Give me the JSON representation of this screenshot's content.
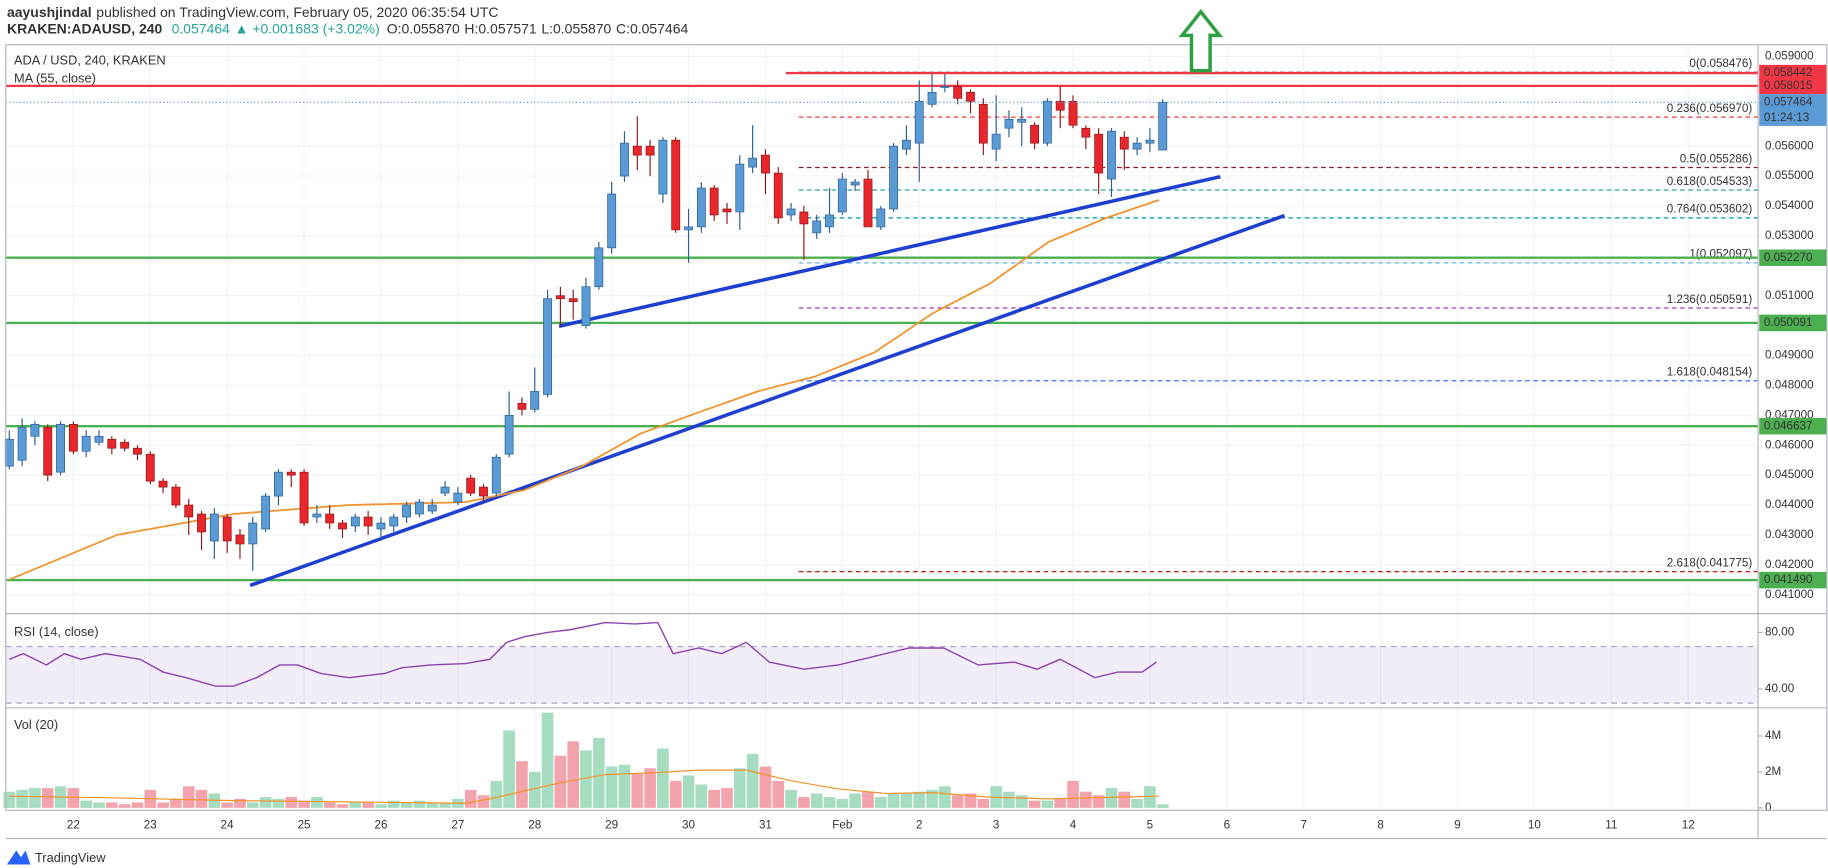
{
  "header": {
    "author": "aayushjindal",
    "published": "published on TradingView.com, February 05, 2020 06:35:54 UTC",
    "symbol": "KRAKEN:ADAUSD, 240",
    "price": "0.057464",
    "change": "▲ +0.001683 (+3.02%)",
    "ohlc": [
      "O:0.055870",
      "H:0.057571",
      "L:0.055870",
      "C:0.057464"
    ]
  },
  "footer": "TradingView",
  "chart_data": [
    {
      "type": "candlestick",
      "title": "ADA / USD, 240, KRAKEN",
      "up_color": "#5b9bd5",
      "down_color": "#e8262b",
      "open": [
        0.0453,
        0.0455,
        0.0463,
        0.0466,
        0.0451,
        0.0467,
        0.0458,
        0.0461,
        0.0462,
        0.0461,
        0.0459,
        0.0457,
        0.0448,
        0.0446,
        0.044,
        0.0437,
        0.0428,
        0.0436,
        0.043,
        0.0427,
        0.0432,
        0.0443,
        0.0451,
        0.0451,
        0.0436,
        0.0437,
        0.0434,
        0.0433,
        0.0436,
        0.0432,
        0.0433,
        0.0436,
        0.0437,
        0.0438,
        0.0444,
        0.0441,
        0.0449,
        0.0446,
        0.0444,
        0.0457,
        0.0474,
        0.0472,
        0.0477,
        0.051,
        0.0509,
        0.05,
        0.0513,
        0.0526,
        0.055,
        0.056,
        0.056,
        0.0544,
        0.0562,
        0.0532,
        0.0533,
        0.0546,
        0.0539,
        0.0538,
        0.0553,
        0.0557,
        0.0551,
        0.0537,
        0.0538,
        0.0531,
        0.0533,
        0.0538,
        0.0547,
        0.0549,
        0.0533,
        0.0539,
        0.0559,
        0.0561,
        0.0574,
        0.058,
        0.058,
        0.0578,
        0.0574,
        0.0559,
        0.0566,
        0.0568,
        0.0567,
        0.0561,
        0.0575,
        0.0575,
        0.0566,
        0.0564,
        0.0549,
        0.0563,
        0.0559,
        0.0561,
        0.05587
      ],
      "high": [
        0.0465,
        0.0469,
        0.0468,
        0.0467,
        0.0468,
        0.0468,
        0.0465,
        0.0465,
        0.0463,
        0.0462,
        0.046,
        0.0458,
        0.0449,
        0.0447,
        0.0442,
        0.0438,
        0.0439,
        0.0437,
        0.0432,
        0.0436,
        0.0444,
        0.0452,
        0.0452,
        0.0452,
        0.044,
        0.044,
        0.0435,
        0.0437,
        0.0438,
        0.0436,
        0.0437,
        0.0441,
        0.0442,
        0.0442,
        0.0448,
        0.0446,
        0.045,
        0.0447,
        0.0457,
        0.0478,
        0.0476,
        0.0486,
        0.0512,
        0.0513,
        0.0512,
        0.0516,
        0.0528,
        0.0548,
        0.0565,
        0.057,
        0.0562,
        0.0563,
        0.0563,
        0.0539,
        0.0548,
        0.0547,
        0.0541,
        0.0557,
        0.0567,
        0.0559,
        0.0553,
        0.0541,
        0.054,
        0.0537,
        0.0546,
        0.0551,
        0.0549,
        0.0552,
        0.054,
        0.0561,
        0.0567,
        0.0582,
        0.0584,
        0.0584,
        0.0582,
        0.0579,
        0.0576,
        0.0577,
        0.0572,
        0.0573,
        0.0568,
        0.0576,
        0.058,
        0.0577,
        0.0567,
        0.0566,
        0.0566,
        0.0565,
        0.0563,
        0.0566,
        0.057571
      ],
      "low": [
        0.0452,
        0.0453,
        0.046,
        0.0448,
        0.045,
        0.0457,
        0.0456,
        0.046,
        0.0457,
        0.0458,
        0.0455,
        0.0447,
        0.0444,
        0.0439,
        0.043,
        0.0425,
        0.0422,
        0.0424,
        0.0422,
        0.0418,
        0.0431,
        0.044,
        0.0446,
        0.0433,
        0.0434,
        0.0432,
        0.0429,
        0.0431,
        0.043,
        0.0428,
        0.0431,
        0.0434,
        0.0436,
        0.0437,
        0.0443,
        0.044,
        0.0443,
        0.0441,
        0.0443,
        0.0456,
        0.047,
        0.0471,
        0.0476,
        0.05,
        0.0502,
        0.0499,
        0.0512,
        0.0524,
        0.0548,
        0.0552,
        0.055,
        0.0541,
        0.0531,
        0.0521,
        0.0531,
        0.0535,
        0.0534,
        0.0532,
        0.0551,
        0.0544,
        0.0534,
        0.0535,
        0.0522,
        0.0529,
        0.0531,
        0.0537,
        0.0545,
        0.0533,
        0.0532,
        0.0538,
        0.0557,
        0.0548,
        0.0573,
        0.0578,
        0.0574,
        0.0571,
        0.0557,
        0.0555,
        0.0563,
        0.056,
        0.0559,
        0.056,
        0.0566,
        0.0566,
        0.0559,
        0.0544,
        0.0543,
        0.0552,
        0.0557,
        0.0558,
        0.05587
      ],
      "close": [
        0.0462,
        0.0466,
        0.0467,
        0.045,
        0.0467,
        0.0458,
        0.0463,
        0.0463,
        0.0459,
        0.0459,
        0.0457,
        0.0448,
        0.0446,
        0.044,
        0.0436,
        0.0431,
        0.0437,
        0.0428,
        0.0427,
        0.0434,
        0.0443,
        0.0451,
        0.045,
        0.0434,
        0.0437,
        0.0434,
        0.0432,
        0.0436,
        0.0433,
        0.0434,
        0.0436,
        0.044,
        0.0441,
        0.044,
        0.0446,
        0.0444,
        0.0444,
        0.0443,
        0.0456,
        0.047,
        0.0472,
        0.0478,
        0.0509,
        0.0509,
        0.0508,
        0.0513,
        0.0526,
        0.0544,
        0.0561,
        0.0557,
        0.0557,
        0.0562,
        0.0532,
        0.0533,
        0.0546,
        0.0537,
        0.0538,
        0.0554,
        0.0556,
        0.0551,
        0.0536,
        0.0539,
        0.0534,
        0.0535,
        0.0537,
        0.0549,
        0.0548,
        0.0533,
        0.0539,
        0.056,
        0.0562,
        0.0575,
        0.0578,
        0.058,
        0.0576,
        0.0575,
        0.0561,
        0.0564,
        0.0569,
        0.0569,
        0.0561,
        0.0575,
        0.0572,
        0.0567,
        0.0563,
        0.0551,
        0.0565,
        0.0559,
        0.0561,
        0.0562,
        0.057464
      ],
      "ma": {
        "name": "MA (55, close)",
        "color": "#f0932b",
        "x": [
          0,
          8.4,
          17.5,
          26.5,
          35.6,
          40.2,
          44.7,
          49.3,
          53.8,
          58.4,
          62.9,
          67.5,
          72,
          76.5,
          81.1,
          85.6,
          89.7
        ],
        "values": [
          0.04151,
          0.043,
          0.0437,
          0.044,
          0.0441,
          0.0445,
          0.0453,
          0.0464,
          0.0471,
          0.0478,
          0.0483,
          0.0491,
          0.0504,
          0.0514,
          0.0528,
          0.0536,
          0.0542
        ]
      },
      "trendlines": [
        {
          "color": "#1f3fd1",
          "x": [
            42.9,
            94.5
          ],
          "values": [
            0.04998,
            0.05498
          ]
        },
        {
          "color": "#1f3fd1",
          "x": [
            18.8,
            99.5
          ],
          "values": [
            0.04131,
            0.05368
          ]
        }
      ],
      "hlines": [
        {
          "value": 0.058442,
          "label": "0.058442",
          "color": "#f23645",
          "xstart": 60.6
        },
        {
          "value": 0.058015,
          "label": "0.058015",
          "color": "#f23645"
        },
        {
          "value": 0.05227,
          "label": "0.052270",
          "color": "#4caf50"
        },
        {
          "value": 0.050091,
          "label": "0.050091",
          "color": "#4caf50"
        },
        {
          "value": 0.046637,
          "label": "0.046637",
          "color": "#4caf50"
        },
        {
          "value": 0.04149,
          "label": "0.041490",
          "color": "#4caf50"
        }
      ],
      "fib_xstart": 61.6,
      "fibs": [
        {
          "value": 0.058476,
          "label": "0(0.058476)",
          "color": "#787b86"
        },
        {
          "value": 0.05697,
          "label": "0.236(0.056970)",
          "color": "#f44336"
        },
        {
          "value": 0.055286,
          "label": "0.5(0.055286)",
          "color": "#8b1a1a"
        },
        {
          "value": 0.054533,
          "label": "0.618(0.054533)",
          "color": "#26a69a"
        },
        {
          "value": 0.053602,
          "label": "0.764(0.053602)",
          "color": "#0097a7"
        },
        {
          "value": 0.052097,
          "label": "1(0.052097)",
          "color": "#64b5f6"
        },
        {
          "value": 0.050591,
          "label": "1.236(0.050591)",
          "color": "#9c27b0"
        },
        {
          "value": 0.048154,
          "label": "1.618(0.048154)",
          "color": "#2962ff"
        },
        {
          "value": 0.041775,
          "label": "2.618(0.041775)",
          "color": "#b71c1c"
        }
      ],
      "last_price": {
        "value": 0.057464,
        "label": "0.057464",
        "color": "#5b9bd5",
        "countdown": "01:24:13"
      },
      "xlim": [
        -0.27,
        136.45
      ],
      "xticks": [
        {
          "value": 5,
          "label": "22"
        },
        {
          "value": 11,
          "label": "23"
        },
        {
          "value": 17,
          "label": "24"
        },
        {
          "value": 23,
          "label": "25"
        },
        {
          "value": 29,
          "label": "26"
        },
        {
          "value": 35,
          "label": "27"
        },
        {
          "value": 41,
          "label": "28"
        },
        {
          "value": 47,
          "label": "29"
        },
        {
          "value": 53,
          "label": "30"
        },
        {
          "value": 59,
          "label": "31"
        },
        {
          "value": 65,
          "label": "Feb"
        },
        {
          "value": 71,
          "label": "2"
        },
        {
          "value": 77,
          "label": "3"
        },
        {
          "value": 83,
          "label": "4"
        },
        {
          "value": 89,
          "label": "5"
        },
        {
          "value": 95,
          "label": "6"
        },
        {
          "value": 101,
          "label": "7"
        },
        {
          "value": 107,
          "label": "8"
        },
        {
          "value": 113,
          "label": "9"
        },
        {
          "value": 119,
          "label": "10"
        },
        {
          "value": 125,
          "label": "11"
        },
        {
          "value": 131,
          "label": "12"
        }
      ],
      "ylim": [
        0.04041,
        0.05939
      ],
      "yticks": [
        {
          "value": 0.041,
          "label": "0.041000"
        },
        {
          "value": 0.042,
          "label": "0.042000"
        },
        {
          "value": 0.043,
          "label": "0.043000"
        },
        {
          "value": 0.044,
          "label": "0.044000"
        },
        {
          "value": 0.045,
          "label": "0.045000"
        },
        {
          "value": 0.046,
          "label": "0.046000"
        },
        {
          "value": 0.047,
          "label": "0.047000"
        },
        {
          "value": 0.048,
          "label": "0.048000"
        },
        {
          "value": 0.049,
          "label": "0.049000"
        },
        {
          "value": 0.051,
          "label": "0.051000"
        },
        {
          "value": 0.053,
          "label": "0.053000"
        },
        {
          "value": 0.054,
          "label": "0.054000"
        },
        {
          "value": 0.055,
          "label": "0.055000"
        },
        {
          "value": 0.056,
          "label": "0.056000"
        },
        {
          "value": 0.059,
          "label": "0.059000"
        }
      ],
      "grid": true
    },
    {
      "type": "line",
      "title": "RSI (14, close)",
      "color": "#8e44ad",
      "band": [
        30,
        70
      ],
      "x": [
        0,
        1.1,
        2.9,
        4.3,
        5.6,
        7.5,
        10.2,
        12,
        13.8,
        16.1,
        17.5,
        19.3,
        21.1,
        22.5,
        24.3,
        26.5,
        29.3,
        30.6,
        32.9,
        35.6,
        37.5,
        38.8,
        40.2,
        42,
        43.8,
        46.5,
        48.8,
        50.6,
        51.8,
        53.8,
        55.6,
        57.5,
        59.3,
        62,
        64.7,
        67,
        70.2,
        72.9,
        75.6,
        78.4,
        80.2,
        82,
        84.7,
        86.5,
        88.4,
        89.5
      ],
      "values": [
        61,
        65,
        57,
        65,
        61,
        65,
        61,
        52,
        48,
        42,
        42,
        48,
        57,
        57,
        51,
        48,
        51,
        55,
        57,
        58,
        61,
        73,
        77,
        80,
        82,
        87,
        86,
        87,
        65,
        69,
        65,
        73,
        59,
        54,
        57,
        62,
        69,
        69,
        57,
        59,
        54,
        61,
        48,
        52,
        52,
        59
      ],
      "ylim": [
        27.5,
        92.5
      ],
      "yticks": [
        {
          "value": 80,
          "label": "80.00"
        },
        {
          "value": 40,
          "label": "40.00"
        }
      ]
    },
    {
      "type": "bar",
      "title": "Vol (20)",
      "up_color": "#a6dcc0",
      "down_color": "#f2a3ab",
      "values": [
        0.9,
        1.0,
        1.1,
        1.1,
        1.2,
        1.1,
        0.4,
        0.3,
        0.3,
        0.2,
        0.3,
        1.0,
        0.3,
        0.5,
        1.2,
        1.0,
        0.8,
        0.3,
        0.5,
        0.3,
        0.6,
        0.5,
        0.6,
        0.4,
        0.6,
        0.3,
        0.2,
        0.3,
        0.3,
        0.2,
        0.4,
        0.3,
        0.4,
        0.3,
        0.3,
        0.5,
        1.0,
        0.7,
        1.5,
        4.3,
        2.6,
        2.0,
        5.3,
        2.9,
        3.7,
        3.2,
        3.9,
        2.3,
        2.4,
        1.9,
        2.2,
        3.3,
        1.5,
        1.8,
        1.3,
        1.0,
        1.1,
        2.2,
        3.0,
        2.3,
        1.5,
        1.0,
        0.6,
        0.8,
        0.6,
        0.5,
        0.8,
        0.9,
        0.6,
        0.8,
        0.8,
        0.9,
        1.0,
        1.2,
        0.7,
        0.8,
        0.5,
        1.2,
        0.9,
        0.7,
        0.4,
        0.4,
        0.5,
        1.5,
        0.9,
        0.7,
        1.1,
        0.9,
        0.5,
        1.2,
        0.2
      ],
      "ma": {
        "color": "#f0932b",
        "x": [
          0,
          8.4,
          17.5,
          26.5,
          35.6,
          37.5,
          43,
          46.5,
          50.2,
          53.8,
          57.5,
          61,
          64.7,
          68.4,
          72,
          76.5,
          81.1,
          89.7
        ],
        "values": [
          0.65,
          0.55,
          0.4,
          0.33,
          0.26,
          0.5,
          1.4,
          1.85,
          1.95,
          2.1,
          2.1,
          1.5,
          1.05,
          0.8,
          0.85,
          0.6,
          0.5,
          0.65
        ]
      },
      "ylim": [
        -0.07,
        5.5
      ],
      "yticks": [
        {
          "value": 4,
          "label": "4M"
        },
        {
          "value": 2,
          "label": "2M"
        },
        0
      ]
    }
  ]
}
